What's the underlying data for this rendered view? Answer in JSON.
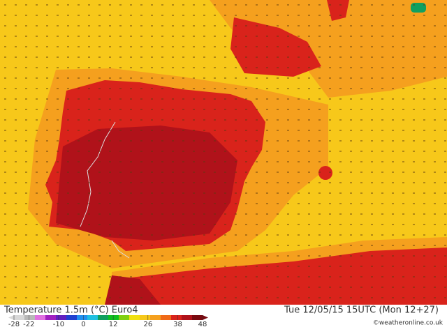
{
  "header": {
    "title": "Temperature 1.5m (°C) Euro4",
    "valid_time": "Tue 12/05/15 15UTC (Mon 12+27)",
    "credit": "©weatheronline.co.uk"
  },
  "colorbar": {
    "range": [
      -28,
      48
    ],
    "ticks": [
      -28,
      -22,
      -10,
      0,
      12,
      26,
      38,
      48
    ],
    "colors": [
      "#d8d8d8",
      "#b8b8b8",
      "#e070e0",
      "#a020c0",
      "#6020c0",
      "#2040d0",
      "#2090f0",
      "#20c0e0",
      "#10a060",
      "#10c020",
      "#80d010",
      "#f0e010",
      "#f7c81a",
      "#f5a01e",
      "#f06a18",
      "#d9231b",
      "#b0121a",
      "#7a0a10"
    ]
  }
}
